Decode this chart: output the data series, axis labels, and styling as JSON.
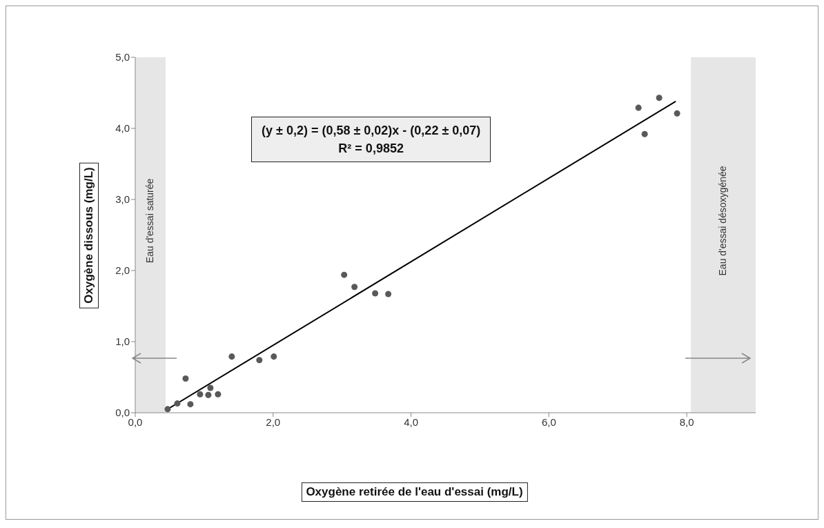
{
  "chart_data": {
    "type": "scatter",
    "xlabel": "Oxygène retirée de l'eau d'essai (mg/L)",
    "ylabel": "Oxygène dissous (mg/L)",
    "annotations": [
      "(y ± 0,2) = (0,58 ± 0,02)x - (0,22 ± 0,07)",
      "R² = 0,9852"
    ],
    "x": [
      0.47,
      0.61,
      0.8,
      0.73,
      0.94,
      1.06,
      1.09,
      1.2,
      1.4,
      1.8,
      2.01,
      3.03,
      3.18,
      3.48,
      3.67,
      7.3,
      7.6,
      7.39,
      7.86
    ],
    "series": [
      {
        "color": "#595959",
        "marker": "circle",
        "values": [
          0.05,
          0.13,
          0.12,
          0.48,
          0.26,
          0.25,
          0.35,
          0.26,
          0.79,
          0.74,
          0.79,
          1.94,
          1.77,
          1.68,
          1.67,
          4.29,
          4.43,
          3.92,
          4.21
        ]
      },
      {
        "type": "line",
        "marker": "none",
        "color": "#000000",
        "x": [
          0.47,
          7.84
        ],
        "values": [
          0.05,
          4.38
        ]
      }
    ],
    "xlim": [
      0,
      9
    ],
    "xticks": [
      {
        "value": 0,
        "label": "0,0"
      },
      {
        "value": 2,
        "label": "2,0"
      },
      {
        "value": 4,
        "label": "4,0"
      },
      {
        "value": 6,
        "label": "6,0"
      },
      {
        "value": 8,
        "label": "8,0"
      }
    ],
    "ylim": [
      0,
      5
    ],
    "yticks": [
      {
        "value": 0,
        "label": "0,0"
      },
      {
        "value": 1,
        "label": "1,0"
      },
      {
        "value": 2,
        "label": "2,0"
      },
      {
        "value": 3,
        "label": "3,0"
      },
      {
        "value": 4,
        "label": "4,0"
      },
      {
        "value": 5,
        "label": "5,0"
      }
    ],
    "bands": [
      {
        "axis": "x",
        "from": 0,
        "to": 0.44,
        "label": "Eau d'essai saturée",
        "color": "#e6e6e6"
      },
      {
        "axis": "x",
        "from": 8.06,
        "to": 9,
        "label": "Eau d'essai désoxygénée",
        "color": "#e6e6e6"
      }
    ],
    "grid": false
  }
}
